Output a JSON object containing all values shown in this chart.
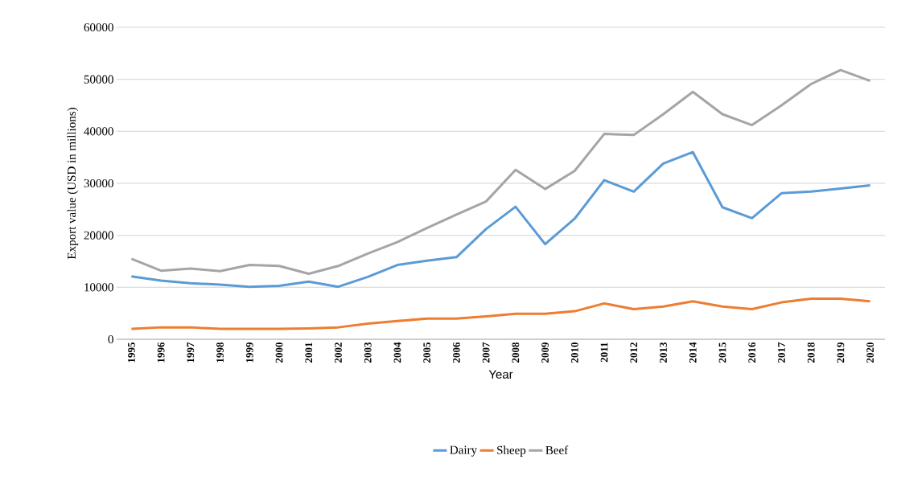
{
  "chart_data": {
    "type": "line",
    "xlabel": "Year",
    "ylabel": "Export value (USD in millions)",
    "categories": [
      "1995",
      "1996",
      "1997",
      "1998",
      "1999",
      "2000",
      "2001",
      "2002",
      "2003",
      "2004",
      "2005",
      "2006",
      "2007",
      "2008",
      "2009",
      "2010",
      "2011",
      "2012",
      "2013",
      "2014",
      "2015",
      "2016",
      "2017",
      "2018",
      "2019",
      "2020"
    ],
    "series": [
      {
        "name": "Dairy",
        "color": "#5b9bd5",
        "values": [
          12100,
          11300,
          10800,
          10500,
          10100,
          10300,
          11100,
          10100,
          12000,
          14300,
          15100,
          15800,
          21200,
          25500,
          18300,
          23200,
          30600,
          28400,
          33800,
          36000,
          25400,
          23300,
          28100,
          28400,
          29000,
          29600
        ]
      },
      {
        "name": "Sheep",
        "color": "#ed7d31",
        "values": [
          2000,
          2300,
          2300,
          2000,
          2000,
          2000,
          2100,
          2300,
          3000,
          3500,
          4000,
          4000,
          4400,
          4900,
          4900,
          5400,
          6900,
          5800,
          6300,
          7300,
          6300,
          5800,
          7100,
          7800,
          7800,
          7300
        ]
      },
      {
        "name": "Beef",
        "color": "#a5a5a5",
        "values": [
          15500,
          13200,
          13600,
          13100,
          14300,
          14100,
          12600,
          14100,
          16500,
          18700,
          21400,
          24000,
          26500,
          32600,
          28900,
          32400,
          39500,
          39300,
          43300,
          47600,
          43300,
          41200,
          45000,
          49100,
          51800,
          49700
        ]
      }
    ],
    "ylim": [
      0,
      60000
    ],
    "yticks": [
      0,
      10000,
      20000,
      30000,
      40000,
      50000,
      60000
    ],
    "grid": "y",
    "legend": "bottom",
    "marker": "none",
    "line_style": "solid"
  }
}
